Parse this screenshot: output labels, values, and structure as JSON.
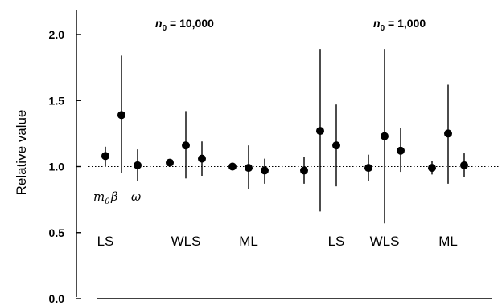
{
  "chart_data": {
    "type": "scatter",
    "ylabel": "Relative value",
    "ylim": [
      0.0,
      2.2
    ],
    "yticks": [
      "0.0",
      "0.5",
      "1.0",
      "1.5",
      "2.0"
    ],
    "reference_line": 1.0,
    "panel_titles": [
      {
        "n": "n",
        "sub": "0",
        "rest": " = 10,000"
      },
      {
        "n": "n",
        "sub": "0",
        "rest": " = 1,000"
      }
    ],
    "parameter_labels": {
      "m": "m",
      "m_sub": "0",
      "beta": "β",
      "omega": "ω"
    },
    "groups": [
      {
        "label": "LS",
        "points": [
          {
            "value": 1.08,
            "low": 1.0,
            "high": 1.15
          },
          {
            "value": 1.39,
            "low": 0.95,
            "high": 1.84
          },
          {
            "value": 1.01,
            "low": 0.89,
            "high": 1.13
          }
        ]
      },
      {
        "label": "WLS",
        "points": [
          {
            "value": 1.03,
            "low": 1.01,
            "high": 1.05
          },
          {
            "value": 1.16,
            "low": 0.91,
            "high": 1.42
          },
          {
            "value": 1.06,
            "low": 0.93,
            "high": 1.19
          }
        ]
      },
      {
        "label": "ML",
        "points": [
          {
            "value": 1.0,
            "low": 0.99,
            "high": 1.01
          },
          {
            "value": 0.99,
            "low": 0.83,
            "high": 1.16
          },
          {
            "value": 0.97,
            "low": 0.87,
            "high": 1.06
          }
        ]
      },
      {
        "label": "LS",
        "points": [
          {
            "value": 0.97,
            "low": 0.87,
            "high": 1.07
          },
          {
            "value": 1.27,
            "low": 0.66,
            "high": 1.89
          },
          {
            "value": 1.16,
            "low": 0.85,
            "high": 1.47
          }
        ]
      },
      {
        "label": "WLS",
        "points": [
          {
            "value": 0.99,
            "low": 0.89,
            "high": 1.09
          },
          {
            "value": 1.23,
            "low": 0.57,
            "high": 1.89
          },
          {
            "value": 1.12,
            "low": 0.96,
            "high": 1.29
          }
        ]
      },
      {
        "label": "ML",
        "points": [
          {
            "value": 0.99,
            "low": 0.94,
            "high": 1.04
          },
          {
            "value": 1.25,
            "low": 0.87,
            "high": 1.62
          },
          {
            "value": 1.01,
            "low": 0.92,
            "high": 1.1
          }
        ]
      }
    ]
  }
}
